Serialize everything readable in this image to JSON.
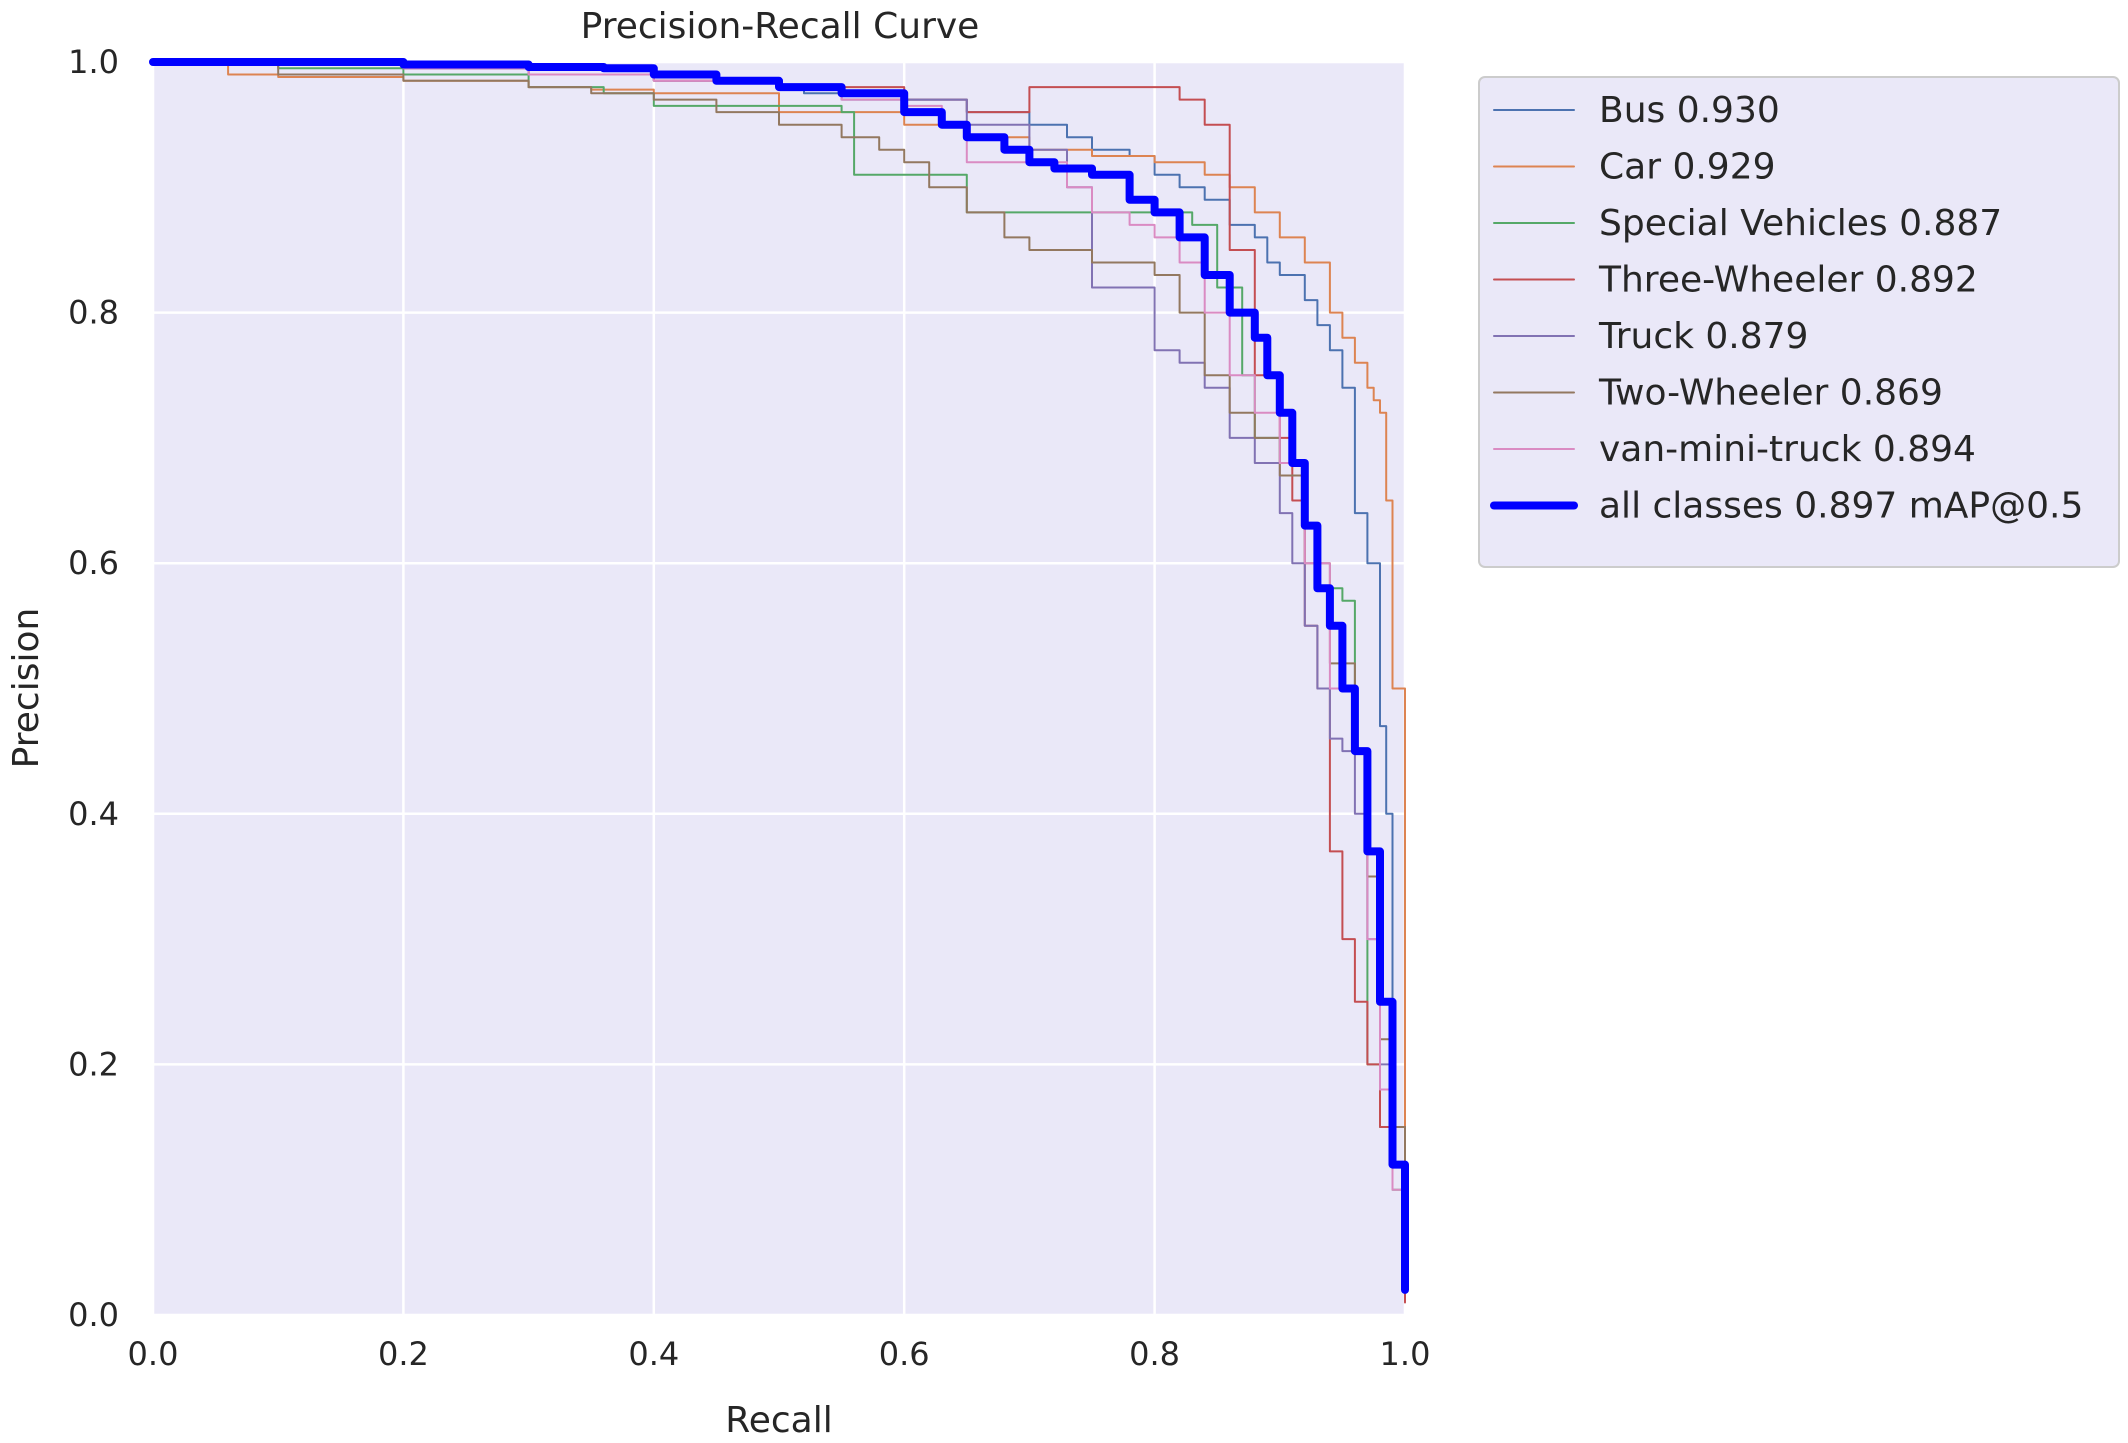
{
  "chart_data": {
    "type": "line",
    "title": "Precision-Recall Curve",
    "xlabel": "Recall",
    "ylabel": "Precision",
    "xlim": [
      0,
      1
    ],
    "ylim": [
      0,
      1
    ],
    "xticks": [
      "0.0",
      "0.2",
      "0.4",
      "0.6",
      "0.8",
      "1.0"
    ],
    "yticks": [
      "0.0",
      "0.2",
      "0.4",
      "0.6",
      "0.8",
      "1.0"
    ],
    "grid": true,
    "legend_position": "outside-right",
    "background_color": "#eae8f8",
    "series": [
      {
        "name": "Bus 0.930",
        "color": "#4c72b0",
        "width": 2,
        "x": [
          0,
          0.05,
          0.1,
          0.2,
          0.3,
          0.4,
          0.45,
          0.5,
          0.52,
          0.55,
          0.58,
          0.6,
          0.65,
          0.7,
          0.73,
          0.75,
          0.78,
          0.8,
          0.82,
          0.84,
          0.86,
          0.88,
          0.89,
          0.9,
          0.92,
          0.93,
          0.94,
          0.95,
          0.96,
          0.97,
          0.98,
          0.985,
          0.99,
          1.0
        ],
        "y": [
          1.0,
          1.0,
          1.0,
          0.995,
          0.99,
          0.988,
          0.985,
          0.98,
          0.975,
          0.97,
          0.97,
          0.97,
          0.96,
          0.95,
          0.94,
          0.93,
          0.925,
          0.91,
          0.9,
          0.89,
          0.87,
          0.86,
          0.84,
          0.83,
          0.81,
          0.79,
          0.77,
          0.74,
          0.64,
          0.6,
          0.47,
          0.4,
          0.15,
          0.05
        ]
      },
      {
        "name": "Car 0.929",
        "color": "#dd8452",
        "width": 2,
        "x": [
          0,
          0.06,
          0.1,
          0.2,
          0.3,
          0.35,
          0.4,
          0.5,
          0.6,
          0.65,
          0.7,
          0.75,
          0.8,
          0.84,
          0.86,
          0.88,
          0.9,
          0.92,
          0.94,
          0.95,
          0.96,
          0.97,
          0.975,
          0.98,
          0.985,
          0.99,
          1.0
        ],
        "y": [
          1.0,
          0.99,
          0.988,
          0.985,
          0.98,
          0.978,
          0.975,
          0.96,
          0.95,
          0.94,
          0.93,
          0.925,
          0.92,
          0.91,
          0.9,
          0.88,
          0.86,
          0.84,
          0.8,
          0.78,
          0.76,
          0.74,
          0.73,
          0.72,
          0.65,
          0.5,
          0.02
        ]
      },
      {
        "name": "Special Vehicles 0.887",
        "color": "#55a868",
        "width": 2,
        "x": [
          0,
          0.1,
          0.2,
          0.3,
          0.36,
          0.4,
          0.5,
          0.55,
          0.56,
          0.6,
          0.65,
          0.7,
          0.75,
          0.8,
          0.83,
          0.85,
          0.87,
          0.88,
          0.9,
          0.92,
          0.93,
          0.95,
          0.96,
          0.97,
          0.98,
          0.99,
          1.0
        ],
        "y": [
          1.0,
          0.995,
          0.99,
          0.98,
          0.975,
          0.965,
          0.965,
          0.96,
          0.91,
          0.91,
          0.88,
          0.88,
          0.88,
          0.88,
          0.87,
          0.82,
          0.75,
          0.7,
          0.68,
          0.63,
          0.58,
          0.57,
          0.45,
          0.2,
          0.15,
          0.1,
          0.08
        ]
      },
      {
        "name": "Three-Wheeler 0.892",
        "color": "#c44e52",
        "width": 2,
        "x": [
          0,
          0.1,
          0.2,
          0.3,
          0.4,
          0.5,
          0.6,
          0.65,
          0.7,
          0.72,
          0.75,
          0.8,
          0.82,
          0.84,
          0.86,
          0.88,
          0.9,
          0.91,
          0.92,
          0.93,
          0.94,
          0.95,
          0.96,
          0.97,
          0.98,
          1.0
        ],
        "y": [
          1.0,
          1.0,
          0.995,
          0.99,
          0.985,
          0.98,
          0.97,
          0.96,
          0.98,
          0.98,
          0.98,
          0.98,
          0.97,
          0.95,
          0.85,
          0.75,
          0.7,
          0.65,
          0.55,
          0.5,
          0.37,
          0.3,
          0.25,
          0.2,
          0.15,
          0.01
        ]
      },
      {
        "name": "Truck 0.879",
        "color": "#8172b3",
        "width": 2,
        "x": [
          0,
          0.1,
          0.2,
          0.3,
          0.4,
          0.5,
          0.55,
          0.6,
          0.65,
          0.7,
          0.73,
          0.75,
          0.77,
          0.8,
          0.82,
          0.84,
          0.86,
          0.88,
          0.9,
          0.91,
          0.92,
          0.93,
          0.94,
          0.95,
          0.96,
          0.97,
          0.98,
          0.99,
          1.0
        ],
        "y": [
          1.0,
          1.0,
          0.995,
          0.99,
          0.985,
          0.98,
          0.975,
          0.97,
          0.95,
          0.93,
          0.9,
          0.82,
          0.82,
          0.77,
          0.76,
          0.74,
          0.7,
          0.68,
          0.64,
          0.6,
          0.55,
          0.5,
          0.46,
          0.45,
          0.4,
          0.3,
          0.2,
          0.12,
          0.1
        ]
      },
      {
        "name": "Two-Wheeler 0.869",
        "color": "#937860",
        "width": 2,
        "x": [
          0,
          0.1,
          0.2,
          0.3,
          0.35,
          0.4,
          0.45,
          0.5,
          0.55,
          0.58,
          0.6,
          0.62,
          0.65,
          0.68,
          0.7,
          0.75,
          0.8,
          0.82,
          0.84,
          0.86,
          0.88,
          0.9,
          0.92,
          0.94,
          0.96,
          0.97,
          0.98,
          0.99,
          1.0
        ],
        "y": [
          1.0,
          0.99,
          0.985,
          0.98,
          0.975,
          0.97,
          0.96,
          0.95,
          0.94,
          0.93,
          0.92,
          0.9,
          0.88,
          0.86,
          0.85,
          0.84,
          0.83,
          0.8,
          0.75,
          0.72,
          0.7,
          0.67,
          0.6,
          0.52,
          0.45,
          0.35,
          0.22,
          0.15,
          0.07
        ]
      },
      {
        "name": "van-mini-truck 0.894",
        "color": "#da8bc3",
        "width": 2,
        "x": [
          0,
          0.1,
          0.2,
          0.3,
          0.4,
          0.5,
          0.55,
          0.6,
          0.63,
          0.65,
          0.7,
          0.73,
          0.75,
          0.78,
          0.8,
          0.82,
          0.84,
          0.86,
          0.88,
          0.9,
          0.92,
          0.94,
          0.96,
          0.97,
          0.98,
          0.99,
          1.0
        ],
        "y": [
          1.0,
          1.0,
          0.995,
          0.99,
          0.985,
          0.98,
          0.97,
          0.965,
          0.95,
          0.92,
          0.92,
          0.9,
          0.88,
          0.87,
          0.86,
          0.84,
          0.8,
          0.75,
          0.72,
          0.68,
          0.6,
          0.5,
          0.45,
          0.3,
          0.18,
          0.1,
          0.08
        ]
      },
      {
        "name": "all classes 0.897 mAP@0.5",
        "color": "#0000ff",
        "width": 8,
        "x": [
          0,
          0.1,
          0.2,
          0.3,
          0.36,
          0.4,
          0.45,
          0.5,
          0.55,
          0.6,
          0.63,
          0.65,
          0.68,
          0.7,
          0.72,
          0.75,
          0.78,
          0.8,
          0.82,
          0.84,
          0.86,
          0.88,
          0.89,
          0.9,
          0.91,
          0.92,
          0.93,
          0.94,
          0.95,
          0.96,
          0.97,
          0.98,
          0.99,
          1.0
        ],
        "y": [
          1.0,
          1.0,
          0.998,
          0.996,
          0.995,
          0.99,
          0.985,
          0.98,
          0.975,
          0.96,
          0.95,
          0.94,
          0.93,
          0.92,
          0.915,
          0.91,
          0.89,
          0.88,
          0.86,
          0.83,
          0.8,
          0.78,
          0.75,
          0.72,
          0.68,
          0.63,
          0.58,
          0.55,
          0.5,
          0.45,
          0.37,
          0.25,
          0.12,
          0.02
        ]
      }
    ]
  }
}
